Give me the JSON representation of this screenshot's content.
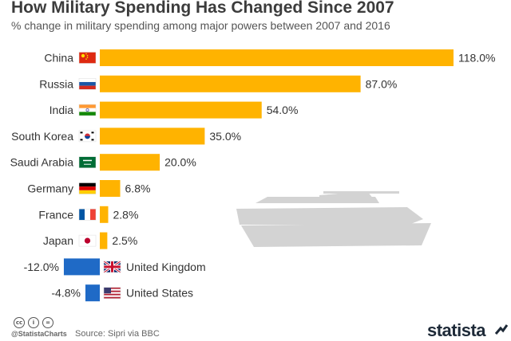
{
  "header": {
    "title": "How Military Spending Has Changed Since 2007",
    "subtitle": "% change in military spending among major powers between 2007 and 2016"
  },
  "chart_data": {
    "type": "bar",
    "orientation": "horizontal",
    "unit": "%",
    "categories": [
      "China",
      "Russia",
      "India",
      "South Korea",
      "Saudi Arabia",
      "Germany",
      "France",
      "Japan",
      "United Kingdom",
      "United States"
    ],
    "values": [
      118.0,
      87.0,
      54.0,
      35.0,
      20.0,
      6.8,
      2.8,
      2.5,
      -12.0,
      -4.8
    ],
    "value_labels": [
      "118.0%",
      "87.0%",
      "54.0%",
      "35.0%",
      "20.0%",
      "6.8%",
      "2.8%",
      "2.5%",
      "-12.0%",
      "-4.8%"
    ],
    "flags": [
      "flag-china",
      "flag-russia",
      "flag-india",
      "flag-south-korea",
      "flag-saudi-arabia",
      "flag-germany",
      "flag-france",
      "flag-japan",
      "flag-united-kingdom",
      "flag-united-states"
    ],
    "colors": {
      "positive": "#ffb300",
      "negative": "#1f6ac6"
    },
    "grid": false,
    "decoration": "tank-silhouette"
  },
  "footer": {
    "license_icons": [
      "cc-icon",
      "by-icon",
      "nd-icon"
    ],
    "license_glyphs": [
      "cc",
      "i",
      "="
    ],
    "handle": "@StatistaCharts",
    "source": "Source: Sipri via BBC",
    "brand": "statista"
  }
}
